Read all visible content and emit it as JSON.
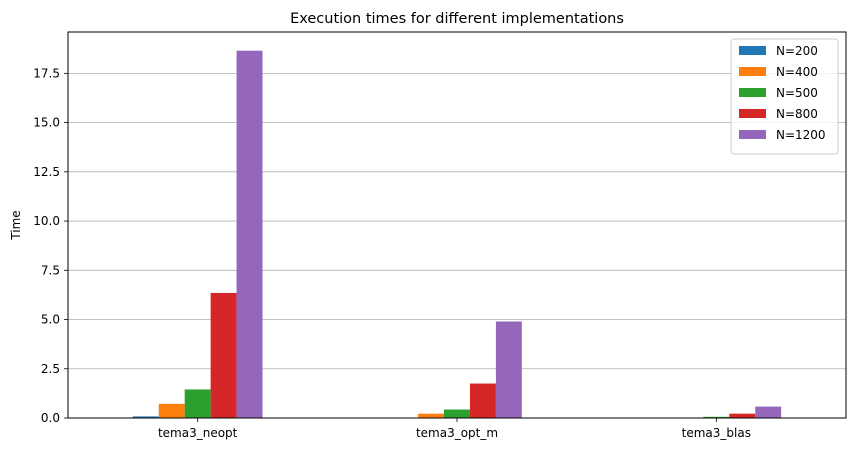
{
  "chart_data": {
    "type": "bar",
    "title": "Execution times for different implementations",
    "xlabel": "",
    "ylabel": "Time",
    "categories": [
      "tema3_neopt",
      "tema3_opt_m",
      "tema3_blas"
    ],
    "series": [
      {
        "name": "N=200",
        "color": "#1f77b4",
        "values": [
          0.08,
          0.02,
          0.01
        ]
      },
      {
        "name": "N=400",
        "color": "#ff7f0e",
        "values": [
          0.72,
          0.22,
          0.02
        ]
      },
      {
        "name": "N=500",
        "color": "#2ca02c",
        "values": [
          1.45,
          0.43,
          0.06
        ]
      },
      {
        "name": "N=800",
        "color": "#d62728",
        "values": [
          6.35,
          1.75,
          0.22
        ]
      },
      {
        "name": "N=1200",
        "color": "#9467bd",
        "values": [
          18.65,
          4.9,
          0.58
        ]
      }
    ],
    "ylim": [
      0,
      19.6
    ],
    "yticks": [
      0.0,
      2.5,
      5.0,
      7.5,
      10.0,
      12.5,
      15.0,
      17.5
    ],
    "ytick_labels": [
      "0.0",
      "2.5",
      "5.0",
      "7.5",
      "10.0",
      "12.5",
      "15.0",
      "17.5"
    ],
    "grid": "y",
    "legend_position": "top-right"
  }
}
